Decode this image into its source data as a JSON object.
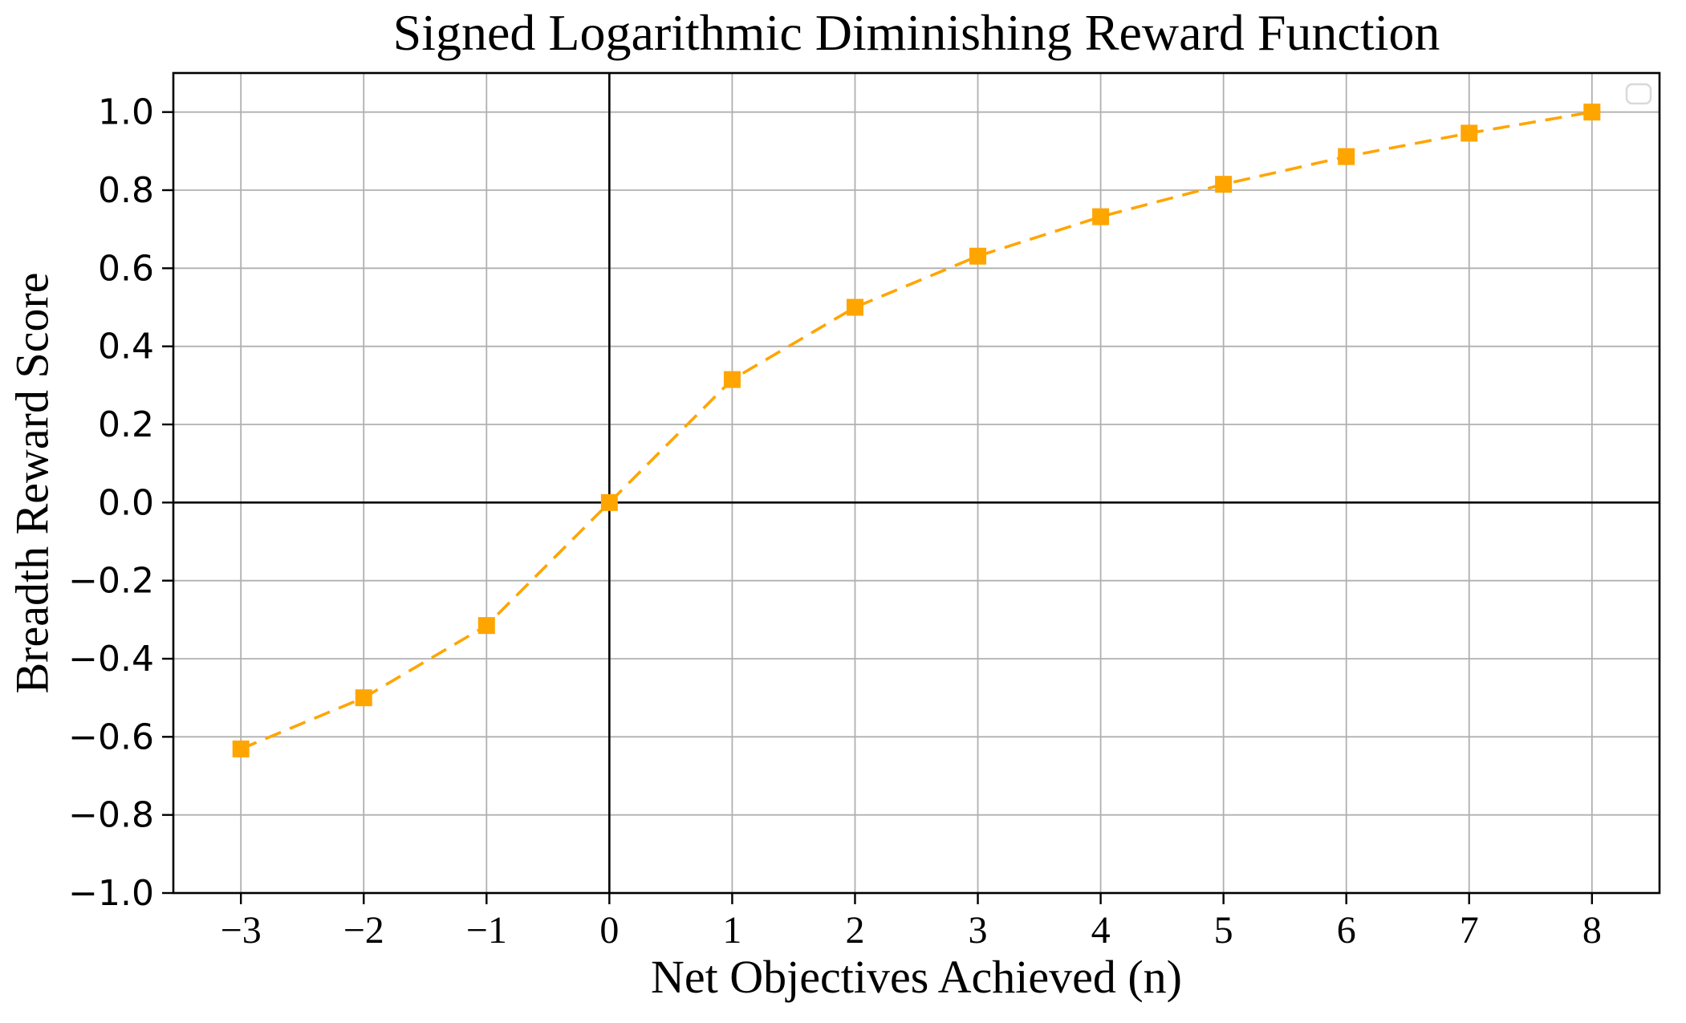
{
  "chart_data": {
    "type": "line",
    "title": "Signed Logarithmic Diminishing Reward Function",
    "xlabel": "Net Objectives Achieved (n)",
    "ylabel": "Breadth Reward Score",
    "x": [
      -3,
      -2,
      -1,
      0,
      1,
      2,
      3,
      4,
      5,
      6,
      7,
      8
    ],
    "y": [
      -0.631,
      -0.5,
      -0.315,
      0.0,
      0.315,
      0.5,
      0.631,
      0.732,
      0.815,
      0.886,
      0.946,
      1.0
    ],
    "xlim": [
      -3.55,
      8.55
    ],
    "ylim": [
      -1.0,
      1.1
    ],
    "x_ticks": {
      "values": [
        -3,
        -2,
        -1,
        0,
        1,
        2,
        3,
        4,
        5,
        6,
        7,
        8
      ],
      "labels": [
        "−3",
        "−2",
        "−1",
        "0",
        "1",
        "2",
        "3",
        "4",
        "5",
        "6",
        "7",
        "8"
      ]
    },
    "y_ticks": {
      "values": [
        -1.0,
        -0.8,
        -0.6,
        -0.4,
        -0.2,
        0.0,
        0.2,
        0.4,
        0.6,
        0.8,
        1.0
      ],
      "labels": [
        "−1.0",
        "−0.8",
        "−0.6",
        "−0.4",
        "−0.2",
        "0.0",
        "0.2",
        "0.4",
        "0.6",
        "0.8",
        "1.0"
      ]
    },
    "grid": true,
    "zero_lines": true,
    "legend": {
      "visible": true,
      "entries": [],
      "position": "upper-right"
    },
    "line": {
      "style": "dashed",
      "marker": "square",
      "color": "#FFA500"
    },
    "colors": {
      "series": "#FFA500",
      "grid": "#b0b0b0",
      "axis": "#000000",
      "background": "#ffffff",
      "legend_border": "#d9d9d9"
    }
  }
}
